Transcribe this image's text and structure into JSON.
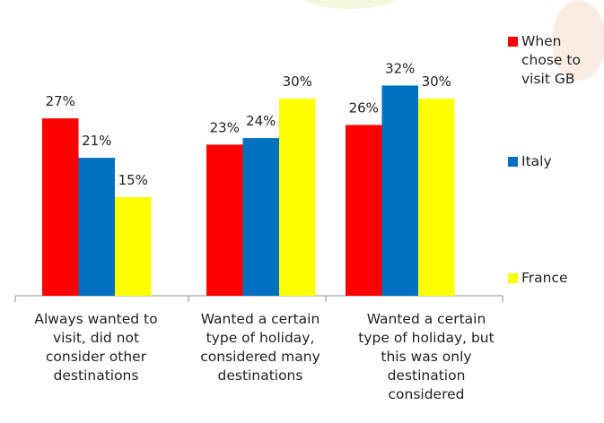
{
  "colors": {
    "series_0": "#ff0000",
    "series_1": "#0070c0",
    "series_2": "#ffff00"
  },
  "chart_data": {
    "type": "bar",
    "categories": [
      "Always wanted to visit, did not consider other destinations",
      "Wanted a certain type of holiday, considered many destinations",
      "Wanted a certain type of holiday,  but this was only destination considered"
    ],
    "category_lines": [
      [
        "Always wanted to",
        "visit, did not",
        "consider other",
        "destinations"
      ],
      [
        "Wanted a certain",
        "type of holiday,",
        "considered many",
        "destinations"
      ],
      [
        "Wanted a certain",
        "type of holiday,  but",
        "this was only",
        "destination",
        "considered"
      ]
    ],
    "series": [
      {
        "name": "When chose to visit GB",
        "values": [
          27,
          23,
          26
        ],
        "labels": [
          "27%",
          "23%",
          "26%"
        ]
      },
      {
        "name": "Italy",
        "values": [
          21,
          24,
          32
        ],
        "labels": [
          "21%",
          "24%",
          "32%"
        ]
      },
      {
        "name": "France",
        "values": [
          15,
          30,
          30
        ],
        "labels": [
          "15%",
          "30%",
          "30%"
        ]
      }
    ],
    "legend_lines": [
      [
        "When",
        "chose to",
        "visit GB"
      ],
      [
        "Italy"
      ],
      [
        "France"
      ]
    ],
    "title": "",
    "xlabel": "",
    "ylabel": "",
    "ylim": [
      0,
      35
    ],
    "grid": false,
    "legend": "right"
  }
}
